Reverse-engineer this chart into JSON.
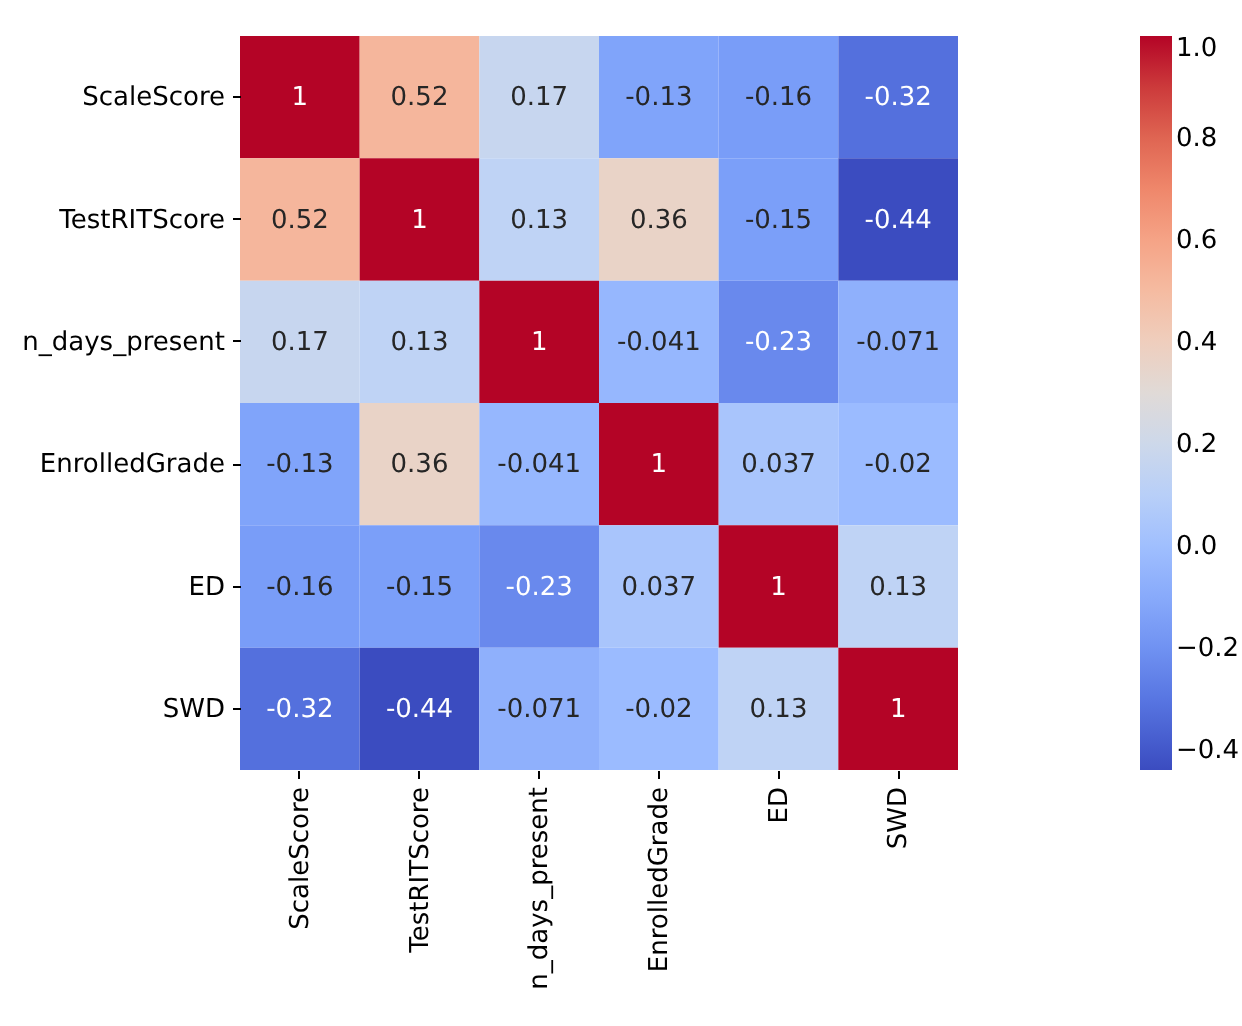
{
  "chart_data": {
    "type": "heatmap",
    "categories": [
      "ScaleScore",
      "TestRITScore",
      "n_days_present",
      "EnrolledGrade",
      "ED",
      "SWD"
    ],
    "y_categories": [
      "ScaleScore",
      "TestRITScore",
      "n_days_present",
      "EnrolledGrade",
      "ED",
      "SWD"
    ],
    "cells": [
      [
        1,
        0.52,
        0.17,
        -0.13,
        -0.16,
        -0.32
      ],
      [
        0.52,
        1,
        0.13,
        0.36,
        -0.15,
        -0.44
      ],
      [
        0.17,
        0.13,
        1,
        -0.041,
        -0.23,
        -0.071
      ],
      [
        -0.13,
        0.36,
        -0.041,
        1,
        0.037,
        -0.02
      ],
      [
        -0.16,
        -0.15,
        -0.23,
        0.037,
        1,
        0.13
      ],
      [
        -0.32,
        -0.44,
        -0.071,
        -0.02,
        0.13,
        1
      ]
    ],
    "data_labels": true,
    "clim": [
      -0.44,
      1
    ],
    "cticks": [
      {
        "value": -0.4,
        "label": "−0.4"
      },
      {
        "value": -0.2,
        "label": "−0.2"
      },
      {
        "value": 0,
        "label": "0.0"
      },
      {
        "value": 0.2,
        "label": "0.2"
      },
      {
        "value": 0.4,
        "label": "0.4"
      },
      {
        "value": 0.6,
        "label": "0.6"
      },
      {
        "value": 0.8,
        "label": "0.8"
      },
      {
        "value": 1,
        "label": "1.0"
      }
    ]
  }
}
